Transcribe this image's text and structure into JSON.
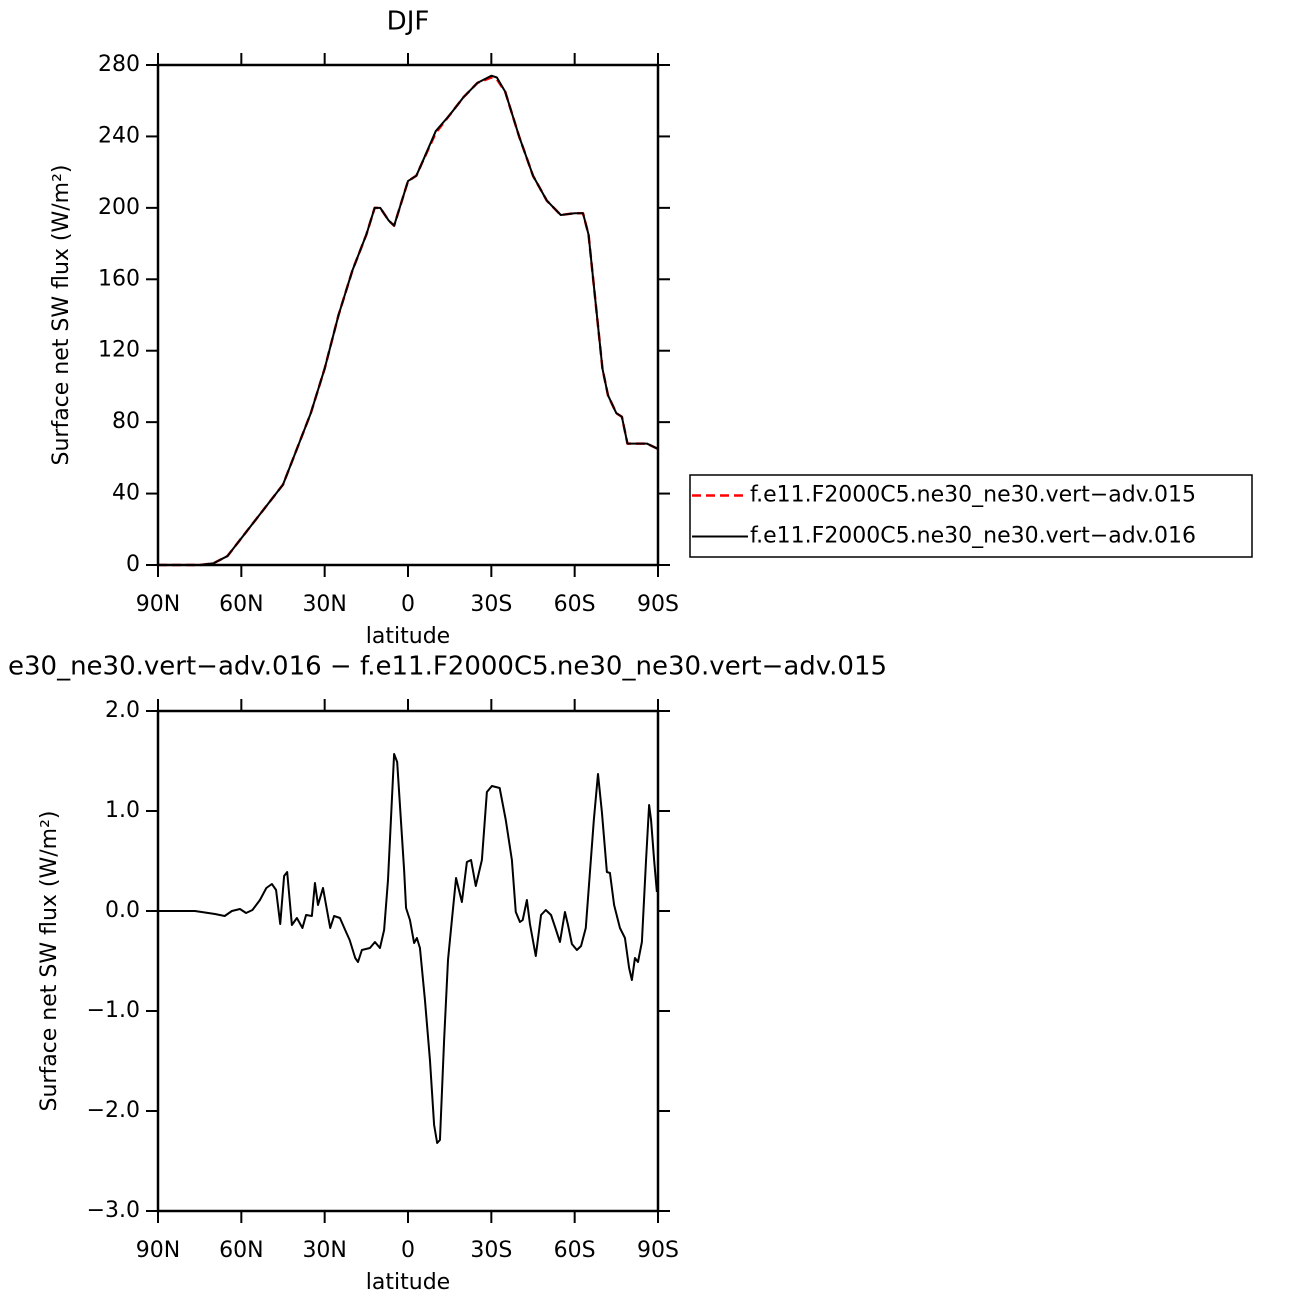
{
  "chart_data": [
    {
      "type": "line",
      "title": "DJF",
      "xlabel": "latitude",
      "ylabel": "Surface net SW flux (W/m²)",
      "xlim": [
        90,
        -90
      ],
      "xticks": [
        {
          "value": 90,
          "label": "90N"
        },
        {
          "value": 60,
          "label": "60N"
        },
        {
          "value": 30,
          "label": "30N"
        },
        0,
        {
          "value": -30,
          "label": "30S"
        },
        {
          "value": -60,
          "label": "60S"
        },
        {
          "value": -90,
          "label": "90S"
        }
      ],
      "ylim": [
        0,
        280
      ],
      "yticks": [
        0,
        40,
        80,
        120,
        160,
        200,
        240,
        280
      ],
      "legend": "right",
      "x": [
        90,
        75,
        70,
        65,
        60,
        55,
        50,
        45,
        40,
        35,
        30,
        25,
        20,
        15,
        12,
        10,
        7,
        5,
        2,
        0,
        -3,
        -5,
        -10,
        -15,
        -20,
        -25,
        -30,
        -32,
        -35,
        -40,
        -45,
        -50,
        -55,
        -60,
        -63,
        -65,
        -68,
        -70,
        -72,
        -75,
        -77,
        -79,
        -82,
        -86,
        -90
      ],
      "series": [
        {
          "name": "f.e11.F2000C5.ne30_ne30.vert−adv.015",
          "color": "#ff0000",
          "dashed": true,
          "values": [
            0,
            0,
            1,
            5,
            15,
            25,
            35,
            45,
            65,
            85,
            110,
            140,
            165,
            185,
            200,
            200,
            193,
            190,
            205,
            215,
            218,
            225,
            242,
            252,
            262,
            270,
            273,
            272,
            265,
            240,
            218,
            204,
            196,
            197,
            197,
            185,
            140,
            110,
            95,
            85,
            83,
            68,
            68,
            68,
            65
          ]
        },
        {
          "name": "f.e11.F2000C5.ne30_ne30.vert−adv.016",
          "color": "#000000",
          "dashed": false,
          "values": [
            0,
            0,
            1,
            5,
            15,
            25,
            35,
            45,
            65,
            85,
            110,
            140,
            165,
            185,
            200,
            200,
            193,
            190,
            205,
            215,
            218,
            225,
            243,
            252,
            262,
            270,
            274,
            273,
            265,
            240,
            218,
            204,
            196,
            197,
            197,
            185,
            140,
            110,
            95,
            85,
            83,
            68,
            68,
            68,
            65
          ]
        }
      ]
    },
    {
      "type": "line",
      "title": "e30_ne30.vert−adv.016 − f.e11.F2000C5.ne30_ne30.vert−adv.015",
      "xlabel": "latitude",
      "ylabel": "Surface net SW flux (W/m²)",
      "xlim": [
        90,
        -90
      ],
      "xticks": [
        {
          "value": 90,
          "label": "90N"
        },
        {
          "value": 60,
          "label": "60N"
        },
        {
          "value": 30,
          "label": "30N"
        },
        0,
        {
          "value": -30,
          "label": "30S"
        },
        {
          "value": -60,
          "label": "60S"
        },
        {
          "value": -90,
          "label": "90S"
        }
      ],
      "ylim": [
        -3,
        2
      ],
      "yticks": [
        {
          "value": -3,
          "label": "−3.0"
        },
        {
          "value": -2,
          "label": "−2.0"
        },
        {
          "value": -1,
          "label": "−1.0"
        },
        {
          "value": 0,
          "label": "0.0"
        },
        {
          "value": 1,
          "label": "1.0"
        },
        {
          "value": 2,
          "label": "2.0"
        }
      ],
      "color": "#000000",
      "x": [
        90,
        76.7,
        69.5,
        66,
        63.4,
        60.5,
        58.3,
        56,
        53.3,
        51,
        49,
        47.5,
        46,
        44.6,
        43.5,
        41.8,
        40,
        38,
        36.7,
        34.6,
        33.5,
        32.4,
        30.6,
        28,
        26.6,
        24.5,
        22.3,
        21,
        19,
        18,
        16.6,
        13.7,
        11.9,
        10.1,
        8.6,
        7.2,
        5,
        3.9,
        1.4,
        0.7,
        -0.7,
        -2.2,
        -3.2,
        -4.3,
        -6.1,
        -7.9,
        -9.4,
        -10.5,
        -11.5,
        -13,
        -14.4,
        -15.8,
        -17.3,
        -19.4,
        -21.2,
        -22.7,
        -24.4,
        -26.6,
        -28.4,
        -30.2,
        -33,
        -35.2,
        -37.4,
        -38.8,
        -40.3,
        -41.3,
        -42.8,
        -43.9,
        -46,
        -47.9,
        -49.6,
        -51.5,
        -53.3,
        -54.7,
        -56.5,
        -57.6,
        -59,
        -60.8,
        -62.3,
        -64,
        -66.9,
        -68.4,
        -69.8,
        -71.6,
        -72.7,
        -74.2,
        -76.3,
        -78.1,
        -79.6,
        -80.6,
        -81.7,
        -82.8,
        -84.2,
        -85.7,
        -86.8,
        -87.5,
        -88.6,
        -89.6
      ],
      "values": [
        0,
        0,
        -0.03,
        -0.05,
        0,
        0.02,
        -0.02,
        0.01,
        0.11,
        0.23,
        0.27,
        0.21,
        -0.13,
        0.35,
        0.39,
        -0.14,
        -0.07,
        -0.17,
        -0.04,
        -0.05,
        0.28,
        0.06,
        0.23,
        -0.17,
        -0.05,
        -0.07,
        -0.21,
        -0.29,
        -0.47,
        -0.51,
        -0.39,
        -0.37,
        -0.31,
        -0.37,
        -0.19,
        0.31,
        1.57,
        1.49,
        0.41,
        0.03,
        -0.09,
        -0.32,
        -0.27,
        -0.37,
        -0.89,
        -1.49,
        -2.14,
        -2.32,
        -2.29,
        -1.29,
        -0.49,
        -0.09,
        0.33,
        0.09,
        0.49,
        0.51,
        0.25,
        0.51,
        1.19,
        1.25,
        1.23,
        0.91,
        0.51,
        -0.01,
        -0.11,
        -0.09,
        0.11,
        -0.13,
        -0.45,
        -0.04,
        0.01,
        -0.04,
        -0.19,
        -0.31,
        -0.01,
        -0.14,
        -0.33,
        -0.39,
        -0.35,
        -0.17,
        0.91,
        1.37,
        0.99,
        0.39,
        0.38,
        0.06,
        -0.17,
        -0.27,
        -0.57,
        -0.69,
        -0.47,
        -0.51,
        -0.31,
        0.51,
        1.06,
        0.91,
        0.51,
        0.19
      ]
    }
  ]
}
